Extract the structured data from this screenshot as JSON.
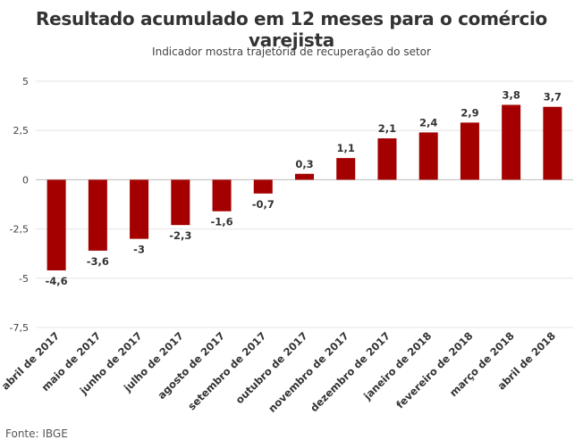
{
  "chart_data": {
    "type": "bar",
    "title": "Resultado acumulado em 12 meses para o comércio varejista",
    "subtitle": "Indicador mostra trajetória de recuperação do setor",
    "source": "Fonte: IBGE",
    "categories": [
      "abril de 2017",
      "maio de 2017",
      "junho de 2017",
      "julho de 2017",
      "agosto de 2017",
      "setembro de 2017",
      "outubro de 2017",
      "novembro de 2017",
      "dezembro de 2017",
      "janeiro de 2018",
      "fevereiro de 2018",
      "março de 2018",
      "abril de 2018"
    ],
    "values": [
      -4.6,
      -3.6,
      -3,
      -2.3,
      -1.6,
      -0.7,
      0.3,
      1.1,
      2.1,
      2.4,
      2.9,
      3.8,
      3.7
    ],
    "value_labels": [
      "-4,6",
      "-3,6",
      "-3",
      "-2,3",
      "-1,6",
      "-0,7",
      "0,3",
      "1,1",
      "2,1",
      "2,4",
      "2,9",
      "3,8",
      "3,7"
    ],
    "ylim": [
      -7.5,
      5
    ],
    "yticks": [
      5,
      2.5,
      0,
      -2.5,
      -5,
      -7.5
    ],
    "ytick_labels": [
      "5",
      "2,5",
      "0",
      "-2,5",
      "-5",
      "-7,5"
    ],
    "bar_color": "#a50000",
    "grid": true,
    "xlabel": "",
    "ylabel": ""
  }
}
